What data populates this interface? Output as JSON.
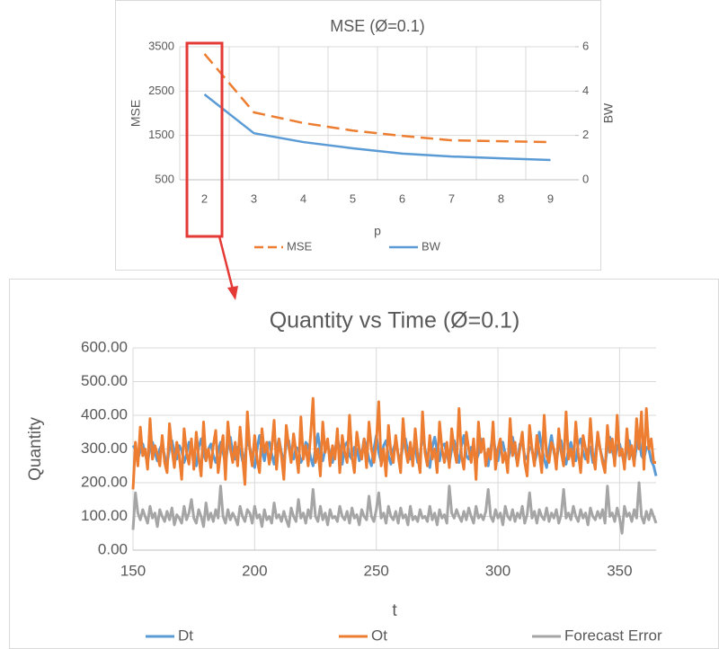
{
  "chart_data": [
    {
      "type": "line",
      "title": "MSE (Ø=0.1)",
      "x_label": "p",
      "y_label": "MSE",
      "y2_label": "BW",
      "categories": [
        "2",
        "3",
        "4",
        "5",
        "6",
        "7",
        "8",
        "9"
      ],
      "series": [
        {
          "name": "MSE",
          "color": "#ed7d31",
          "dash": true,
          "values": [
            3340,
            2020,
            1780,
            1610,
            1490,
            1390,
            1370,
            1350
          ]
        },
        {
          "name": "BW",
          "color": "#5b9bd5",
          "axis": "y2",
          "values": [
            3.85,
            2.1,
            1.7,
            1.42,
            1.18,
            1.05,
            0.97,
            0.89
          ]
        }
      ],
      "ylim": [
        500,
        3500
      ],
      "yticks": [
        500,
        1500,
        2500,
        3500
      ],
      "y2lim": [
        0,
        6
      ],
      "y2ticks": [
        0,
        2,
        4,
        6
      ],
      "grid": true,
      "legend": "bottom"
    },
    {
      "type": "line",
      "title": "Quantity vs Time (Ø=0.1)",
      "x_label": "t",
      "y_label": "Quantity",
      "x": [
        150,
        151,
        152,
        153,
        154,
        155,
        156,
        157,
        158,
        159,
        160,
        161,
        162,
        163,
        164,
        165,
        166,
        167,
        168,
        169,
        170,
        171,
        172,
        173,
        174,
        175,
        176,
        177,
        178,
        179,
        180,
        181,
        182,
        183,
        184,
        185,
        186,
        187,
        188,
        189,
        190,
        191,
        192,
        193,
        194,
        195,
        196,
        197,
        198,
        199,
        200,
        201,
        202,
        203,
        204,
        205,
        206,
        207,
        208,
        209,
        210,
        211,
        212,
        213,
        214,
        215,
        216,
        217,
        218,
        219,
        220,
        221,
        222,
        223,
        224,
        225,
        226,
        227,
        228,
        229,
        230,
        231,
        232,
        233,
        234,
        235,
        236,
        237,
        238,
        239,
        240,
        241,
        242,
        243,
        244,
        245,
        246,
        247,
        248,
        249,
        250,
        251,
        252,
        253,
        254,
        255,
        256,
        257,
        258,
        259,
        260,
        261,
        262,
        263,
        264,
        265,
        266,
        267,
        268,
        269,
        270,
        271,
        272,
        273,
        274,
        275,
        276,
        277,
        278,
        279,
        280,
        281,
        282,
        283,
        284,
        285,
        286,
        287,
        288,
        289,
        290,
        291,
        292,
        293,
        294,
        295,
        296,
        297,
        298,
        299,
        300,
        301,
        302,
        303,
        304,
        305,
        306,
        307,
        308,
        309,
        310,
        311,
        312,
        313,
        314,
        315,
        316,
        317,
        318,
        319,
        320,
        321,
        322,
        323,
        324,
        325,
        326,
        327,
        328,
        329,
        330,
        331,
        332,
        333,
        334,
        335,
        336,
        337,
        338,
        339,
        340,
        341,
        342,
        343,
        344,
        345,
        346,
        347,
        348,
        349,
        350,
        351,
        352,
        353,
        354,
        355,
        356,
        357,
        358,
        359,
        360,
        361,
        362,
        363,
        364,
        365
      ],
      "series": [
        {
          "name": "Dt",
          "color": "#5b9bd5",
          "values": [
            310,
            300,
            270,
            295,
            315,
            285,
            260,
            305,
            320,
            290,
            265,
            300,
            315,
            280,
            255,
            300,
            325,
            290,
            270,
            310,
            295,
            260,
            285,
            320,
            300,
            275,
            250,
            305,
            330,
            285,
            265,
            300,
            315,
            280,
            260,
            295,
            320,
            290,
            255,
            310,
            335,
            290,
            270,
            305,
            300,
            265,
            280,
            325,
            305,
            270,
            245,
            300,
            340,
            295,
            265,
            310,
            320,
            285,
            255,
            300,
            330,
            290,
            260,
            315,
            325,
            280,
            270,
            305,
            300,
            260,
            275,
            320,
            310,
            275,
            250,
            305,
            345,
            290,
            265,
            300,
            315,
            285,
            260,
            295,
            335,
            295,
            255,
            310,
            320,
            280,
            270,
            305,
            300,
            265,
            285,
            330,
            305,
            270,
            250,
            300,
            340,
            290,
            260,
            310,
            325,
            280,
            255,
            300,
            320,
            285,
            265,
            315,
            330,
            290,
            270,
            300,
            305,
            260,
            280,
            345,
            300,
            270,
            245,
            305,
            335,
            295,
            265,
            310,
            315,
            285,
            255,
            300,
            325,
            290,
            260,
            310,
            340,
            280,
            270,
            305,
            300,
            265,
            285,
            330,
            310,
            275,
            250,
            300,
            345,
            290,
            265,
            310,
            320,
            285,
            260,
            295,
            335,
            295,
            255,
            315,
            320,
            280,
            270,
            305,
            300,
            260,
            285,
            350,
            305,
            270,
            245,
            300,
            340,
            290,
            260,
            310,
            325,
            280,
            255,
            300,
            320,
            285,
            265,
            315,
            330,
            290,
            270,
            300,
            305,
            260,
            280,
            340,
            300,
            270,
            250,
            305,
            335,
            295,
            265,
            310,
            315,
            285,
            255,
            300,
            325,
            290,
            260,
            310,
            335,
            280,
            270,
            305,
            300,
            265,
            250,
            220
          ]
        },
        {
          "name": "Ot",
          "color": "#ed7d31",
          "values": [
            180,
            320,
            250,
            365,
            280,
            300,
            240,
            390,
            270,
            310,
            285,
            250,
            340,
            260,
            230,
            375,
            300,
            245,
            320,
            280,
            210,
            360,
            290,
            255,
            330,
            240,
            350,
            275,
            220,
            380,
            265,
            300,
            245,
            310,
            355,
            230,
            290,
            340,
            210,
            380,
            300,
            260,
            320,
            250,
            365,
            280,
            195,
            410,
            300,
            250,
            340,
            270,
            230,
            360,
            290,
            320,
            255,
            300,
            385,
            240,
            330,
            280,
            210,
            370,
            310,
            260,
            345,
            290,
            230,
            395,
            270,
            310,
            250,
            340,
            450,
            260,
            300,
            220,
            380,
            290,
            330,
            250,
            310,
            270,
            360,
            230,
            340,
            290,
            260,
            400,
            280,
            230,
            350,
            300,
            270,
            330,
            245,
            380,
            300,
            260,
            320,
            440,
            250,
            300,
            220,
            370,
            290,
            260,
            340,
            280,
            230,
            390,
            300,
            260,
            320,
            250,
            360,
            280,
            230,
            410,
            290,
            250,
            340,
            270,
            300,
            230,
            380,
            300,
            260,
            320,
            245,
            360,
            300,
            260,
            420,
            280,
            240,
            350,
            300,
            260,
            330,
            210,
            380,
            290,
            330,
            250,
            300,
            270,
            380,
            240,
            300,
            330,
            260,
            290,
            230,
            390,
            280,
            320,
            250,
            300,
            350,
            260,
            220,
            370,
            300,
            250,
            340,
            290,
            230,
            400,
            280,
            260,
            320,
            300,
            240,
            360,
            290,
            250,
            410,
            270,
            300,
            250,
            380,
            290,
            230,
            340,
            300,
            260,
            390,
            280,
            240,
            350,
            300,
            260,
            230,
            370,
            290,
            330,
            250,
            400,
            280,
            300,
            240,
            360,
            270,
            310,
            250,
            390,
            300,
            410,
            240,
            420,
            300,
            330,
            260,
            260
          ]
        },
        {
          "name": "Forecast Error",
          "color": "#a5a5a5",
          "values": [
            60,
            170,
            110,
            90,
            120,
            100,
            80,
            130,
            95,
            110,
            70,
            120,
            100,
            85,
            115,
            90,
            125,
            75,
            105,
            95,
            80,
            130,
            90,
            110,
            150,
            95,
            80,
            120,
            100,
            70,
            140,
            90,
            110,
            85,
            120,
            95,
            190,
            100,
            80,
            120,
            90,
            110,
            95,
            75,
            130,
            100,
            85,
            120,
            110,
            80,
            130,
            95,
            105,
            70,
            120,
            90,
            100,
            80,
            140,
            95,
            105,
            85,
            115,
            90,
            70,
            125,
            100,
            85,
            150,
            95,
            110,
            80,
            120,
            95,
            180,
            100,
            85,
            130,
            90,
            110,
            75,
            120,
            95,
            100,
            85,
            130,
            100,
            90,
            115,
            80,
            125,
            95,
            105,
            75,
            120,
            100,
            90,
            160,
            100,
            85,
            120,
            170,
            95,
            110,
            80,
            130,
            100,
            90,
            115,
            80,
            125,
            95,
            105,
            75,
            130,
            90,
            100,
            85,
            120,
            95,
            100,
            85,
            130,
            90,
            110,
            75,
            120,
            95,
            105,
            80,
            190,
            110,
            95,
            120,
            100,
            85,
            115,
            90,
            125,
            100,
            80,
            130,
            95,
            105,
            90,
            115,
            180,
            100,
            85,
            120,
            95,
            110,
            75,
            130,
            100,
            90,
            120,
            85,
            110,
            95,
            130,
            80,
            105,
            170,
            95,
            115,
            80,
            120,
            100,
            90,
            125,
            85,
            110,
            95,
            120,
            80,
            105,
            180,
            95,
            110,
            90,
            130,
            100,
            85,
            120,
            95,
            110,
            75,
            125,
            100,
            90,
            115,
            95,
            120,
            80,
            190,
            100,
            110,
            85,
            125,
            95,
            50,
            130,
            100,
            110,
            85,
            120,
            95,
            200,
            100,
            80,
            115,
            90,
            120,
            100,
            80
          ]
        }
      ],
      "xlim": [
        150,
        365
      ],
      "xticks": [
        150,
        200,
        250,
        300,
        350
      ],
      "ylim": [
        0,
        600
      ],
      "yticks": [
        {
          "value": 0,
          "label": "0.00"
        },
        {
          "value": 100,
          "label": "100.00"
        },
        {
          "value": 200,
          "label": "200.00"
        },
        {
          "value": 300,
          "label": "300.00"
        },
        {
          "value": 400,
          "label": "400.00"
        },
        {
          "value": 500,
          "label": "500.00"
        },
        {
          "value": 600,
          "label": "600.00"
        }
      ],
      "grid": true,
      "legend": "bottom"
    }
  ]
}
